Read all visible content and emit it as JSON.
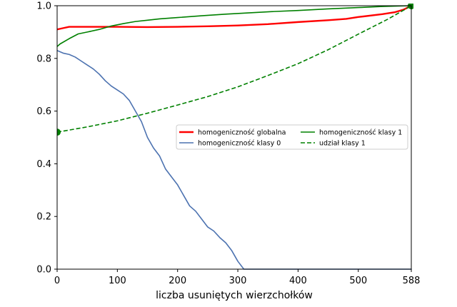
{
  "chart_data": {
    "type": "line",
    "title": "",
    "xlabel": "liczba usuniętych wierzchołków",
    "ylabel": "",
    "xlim": [
      0,
      588
    ],
    "ylim": [
      0,
      1.0
    ],
    "xticks": [
      0,
      100,
      200,
      300,
      400,
      500,
      588
    ],
    "xtick_labels": [
      "0",
      "100",
      "200",
      "300",
      "400",
      "500",
      "588"
    ],
    "yticks": [
      0.0,
      0.2,
      0.4,
      0.6,
      0.8,
      1.0
    ],
    "ytick_labels": [
      "0.0",
      "0.2",
      "0.4",
      "0.6",
      "0.8",
      "1.0"
    ],
    "grid": false,
    "legend_position": "center-right",
    "series": [
      {
        "name": "homogeniczność globalna",
        "color": "#ff0000",
        "style": "solid",
        "width": 2.4,
        "x": [
          0,
          10,
          20,
          50,
          100,
          150,
          200,
          250,
          300,
          350,
          400,
          450,
          480,
          500,
          540,
          560,
          575,
          588
        ],
        "y": [
          0.91,
          0.915,
          0.92,
          0.92,
          0.92,
          0.919,
          0.92,
          0.922,
          0.925,
          0.93,
          0.938,
          0.945,
          0.95,
          0.957,
          0.968,
          0.975,
          0.985,
          1.0
        ]
      },
      {
        "name": "homogeniczność klasy 0",
        "color": "#4c72b0",
        "style": "solid",
        "width": 1.6,
        "x": [
          0,
          10,
          20,
          30,
          40,
          50,
          60,
          70,
          80,
          90,
          100,
          110,
          120,
          130,
          140,
          150,
          160,
          170,
          180,
          190,
          200,
          210,
          220,
          230,
          240,
          250,
          260,
          270,
          280,
          290,
          300,
          310,
          588
        ],
        "y": [
          0.83,
          0.82,
          0.815,
          0.805,
          0.79,
          0.775,
          0.76,
          0.74,
          0.715,
          0.695,
          0.68,
          0.665,
          0.64,
          0.6,
          0.56,
          0.5,
          0.46,
          0.43,
          0.38,
          0.35,
          0.32,
          0.28,
          0.24,
          0.22,
          0.19,
          0.16,
          0.145,
          0.12,
          0.1,
          0.07,
          0.03,
          0.0,
          0.0
        ]
      },
      {
        "name": "homogeniczność klasy 1",
        "color": "#008000",
        "style": "solid",
        "width": 1.6,
        "x": [
          0,
          5,
          20,
          35,
          50,
          70,
          90,
          110,
          130,
          150,
          170,
          200,
          240,
          280,
          320,
          360,
          400,
          450,
          500,
          540,
          570,
          588
        ],
        "y": [
          0.845,
          0.855,
          0.875,
          0.893,
          0.9,
          0.91,
          0.923,
          0.932,
          0.94,
          0.945,
          0.95,
          0.955,
          0.962,
          0.968,
          0.973,
          0.978,
          0.982,
          0.988,
          0.993,
          0.997,
          0.999,
          1.0
        ]
      },
      {
        "name": "udział klasy 1",
        "color": "#008000",
        "style": "dashed",
        "width": 1.6,
        "x": [
          0,
          50,
          100,
          150,
          200,
          250,
          300,
          350,
          400,
          450,
          500,
          550,
          588
        ],
        "y": [
          0.52,
          0.54,
          0.563,
          0.592,
          0.623,
          0.655,
          0.692,
          0.735,
          0.78,
          0.833,
          0.892,
          0.95,
          1.0
        ]
      }
    ],
    "markers": [
      {
        "x": 0,
        "y": 0.52,
        "color": "#008000"
      },
      {
        "x": 588,
        "y": 1.0,
        "color": "#008000"
      }
    ],
    "legend": [
      {
        "label": "homogeniczność globalna",
        "color": "#ff0000",
        "style": "solid"
      },
      {
        "label": "homogeniczność klasy 0",
        "color": "#4c72b0",
        "style": "solid"
      },
      {
        "label": "homogeniczność klasy 1",
        "color": "#008000",
        "style": "solid"
      },
      {
        "label": "udział klasy 1",
        "color": "#008000",
        "style": "dashed"
      }
    ]
  }
}
